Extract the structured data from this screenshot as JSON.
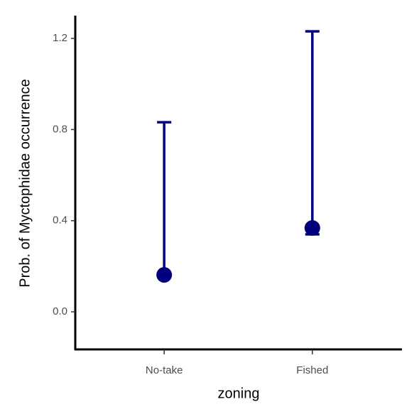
{
  "chart_data": {
    "type": "errorbar",
    "x_label": "zoning",
    "y_label": "Prob. of Myctophidae occurrence",
    "categories": [
      "No-take",
      "Fished"
    ],
    "series": [
      {
        "color": "#00007f",
        "values": [
          0.162,
          0.368
        ],
        "lower": [
          0.16,
          0.34
        ],
        "upper": [
          0.832,
          1.231
        ]
      }
    ],
    "ylim": [
      -0.165,
      1.3
    ],
    "yticks": [
      {
        "value": 0,
        "label": "0.0"
      },
      0.4,
      0.8,
      1.2
    ],
    "grid": false
  }
}
